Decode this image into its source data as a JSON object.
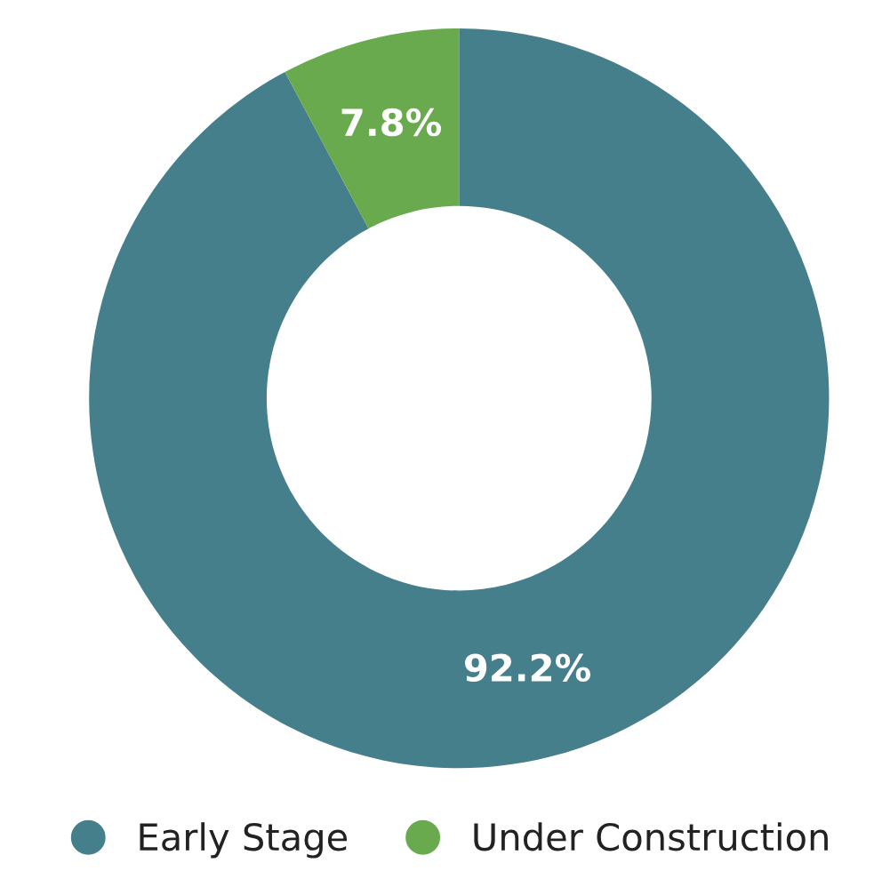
{
  "chart_data": {
    "type": "donut",
    "categories": [
      "Early Stage",
      "Under Construction"
    ],
    "values": [
      92.2,
      7.8
    ],
    "colors": [
      "#467f8c",
      "#6aaa4f"
    ],
    "value_labels": [
      "92.2%",
      "7.8%"
    ],
    "legend": "bottom"
  }
}
